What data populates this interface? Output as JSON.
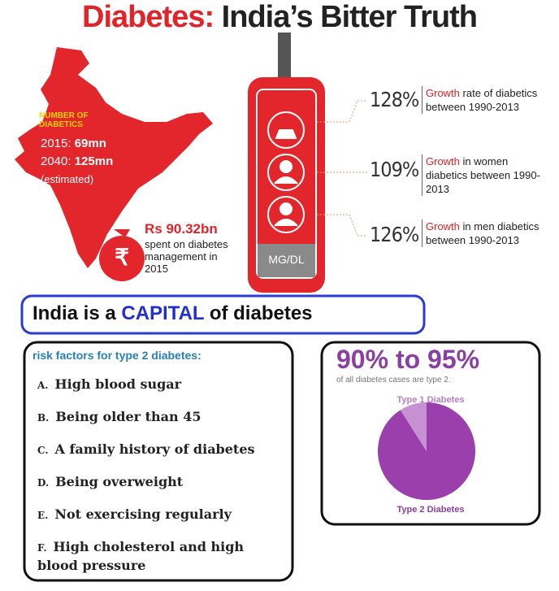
{
  "title": {
    "part1": "Diabetes:",
    "part2": "India’s Bitter Truth"
  },
  "map": {
    "heading": "NUMBER OF DIABETICS",
    "rows": [
      {
        "year": "2015:",
        "value": "69mn"
      },
      {
        "year": "2040:",
        "value": "125mn"
      }
    ],
    "note": "(estimated)"
  },
  "spending": {
    "symbol": "₹",
    "amount": "Rs 90.32bn",
    "text": "spent on diabetes management in 2015"
  },
  "meter": {
    "label": "MG/DL"
  },
  "stats": [
    {
      "value": "128%",
      "highlight": "Growth",
      "text": "rate of diabetics between 1990-2013"
    },
    {
      "value": "109%",
      "highlight": "Growth",
      "text": "in women diabetics between 1990-2013"
    },
    {
      "value": "126%",
      "highlight": "Growth",
      "text": "in men diabetics between 1990-2013"
    }
  ],
  "banner": {
    "before": "India is a",
    "highlight": "CAPITAL",
    "after": "of diabetes"
  },
  "risk_factors": {
    "heading": "risk factors for type 2 diabetes:",
    "items": [
      {
        "letter": "A.",
        "text": "High blood sugar"
      },
      {
        "letter": "B.",
        "text": "Being older than 45"
      },
      {
        "letter": "C.",
        "text": "A family history of diabetes"
      },
      {
        "letter": "D.",
        "text": "Being overweight"
      },
      {
        "letter": "E.",
        "text": "Not exercising regularly"
      },
      {
        "letter": "F.",
        "text": "High cholesterol and high blood pressure"
      }
    ]
  },
  "types": {
    "headline": "90% to 95%",
    "subtitle": "of all diabetes cases are type 2.",
    "chart": {
      "type": "pie",
      "categories": [
        "Type 2 Diabetes",
        "Type 1 Diabetes"
      ],
      "values": [
        91,
        9
      ],
      "colors": [
        "#9a3fab",
        "#c690d2"
      ]
    }
  }
}
